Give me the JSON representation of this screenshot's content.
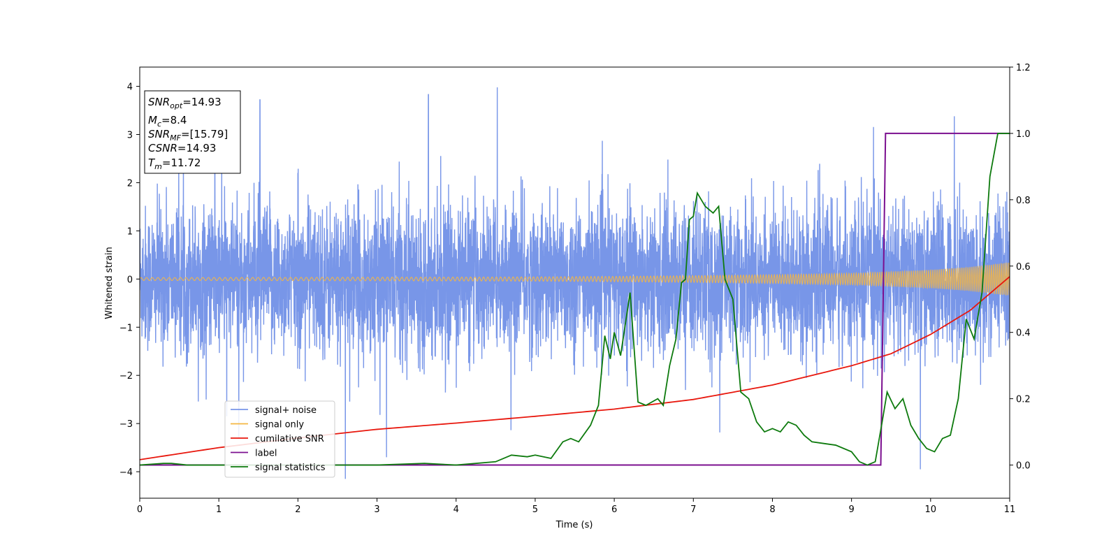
{
  "chart_data": {
    "type": "line",
    "xlabel": "Time (s)",
    "ylabel": "Whitened strain",
    "xlim": [
      0,
      11
    ],
    "ylim": [
      -4.55,
      4.4
    ],
    "y2lim": [
      -0.1,
      1.2
    ],
    "x_ticks": [
      0,
      1,
      2,
      3,
      4,
      5,
      6,
      7,
      8,
      9,
      10,
      11
    ],
    "y_ticks": [
      -4,
      -3,
      -2,
      -1,
      0,
      1,
      2,
      3,
      4
    ],
    "y2_ticks": [
      0.0,
      0.2,
      0.4,
      0.6,
      0.8,
      1.0,
      1.2
    ],
    "grid": false,
    "legend_position": "lower-left",
    "info_box": {
      "snr_opt": {
        "main": "SNR",
        "sub": "opt",
        "value": "=14.93"
      },
      "mc": {
        "main": "M",
        "sub": "c",
        "value": "=8.4"
      },
      "snr_mf": {
        "main": "SNR",
        "sub": "MF",
        "value": "=[15.79]"
      },
      "csnr": {
        "main": "CSNR",
        "value": "=14.93"
      },
      "tm": {
        "main": "T",
        "sub": "m",
        "value": "=11.72"
      }
    },
    "series": [
      {
        "name": "signal+ noise",
        "color": "#7896e8",
        "axis": "left",
        "note_peaks": [
          [
            0.95,
            3.6
          ],
          [
            1.52,
            3.72
          ],
          [
            3.65,
            3.83
          ],
          [
            4.52,
            3.98
          ],
          [
            10.3,
            3.38
          ],
          [
            2.6,
            -4.15
          ],
          [
            1.1,
            -2.85
          ],
          [
            3.12,
            -3.7
          ],
          [
            9.87,
            -3.95
          ]
        ],
        "envelope_sigma": 0.75
      },
      {
        "name": "signal only",
        "color": "#f5b642",
        "axis": "left",
        "x": [
          0,
          2,
          4,
          5,
          6,
          7,
          8,
          9,
          10,
          10.5,
          11
        ],
        "amplitude": [
          0.03,
          0.035,
          0.04,
          0.045,
          0.055,
          0.07,
          0.09,
          0.12,
          0.19,
          0.25,
          0.35
        ]
      },
      {
        "name": "cumilative SNR",
        "color": "#e8170d",
        "axis": "left",
        "x": [
          0,
          1,
          2,
          3,
          4,
          5,
          6,
          7,
          8,
          9,
          9.5,
          10,
          10.5,
          11
        ],
        "y": [
          -3.75,
          -3.5,
          -3.3,
          -3.12,
          -2.99,
          -2.85,
          -2.7,
          -2.5,
          -2.2,
          -1.8,
          -1.55,
          -1.15,
          -0.65,
          0.05
        ]
      },
      {
        "name": "label",
        "color": "#7b0f8f",
        "axis": "right",
        "x": [
          0,
          9.37,
          9.43,
          11
        ],
        "y": [
          0.0,
          0.0,
          1.0,
          1.0
        ]
      },
      {
        "name": "signal statistics",
        "color": "#0d7a0d",
        "axis": "right",
        "x": [
          0,
          0.3,
          0.4,
          0.6,
          1,
          2,
          3,
          3.6,
          4,
          4.5,
          4.7,
          4.9,
          5.0,
          5.2,
          5.35,
          5.45,
          5.55,
          5.7,
          5.8,
          5.88,
          5.95,
          6.0,
          6.08,
          6.2,
          6.3,
          6.4,
          6.55,
          6.62,
          6.7,
          6.78,
          6.85,
          6.9,
          6.95,
          7.0,
          7.05,
          7.15,
          7.25,
          7.32,
          7.4,
          7.5,
          7.6,
          7.7,
          7.8,
          7.9,
          8.0,
          8.1,
          8.2,
          8.3,
          8.4,
          8.5,
          8.65,
          8.8,
          9.0,
          9.1,
          9.2,
          9.3,
          9.38,
          9.45,
          9.55,
          9.65,
          9.75,
          9.85,
          9.95,
          10.05,
          10.15,
          10.25,
          10.35,
          10.45,
          10.55,
          10.65,
          10.75,
          10.85,
          10.95,
          11.0
        ],
        "y": [
          0.0,
          0.005,
          0.005,
          0.0,
          0.0,
          0.0,
          0.0,
          0.005,
          0.0,
          0.01,
          0.03,
          0.025,
          0.03,
          0.02,
          0.07,
          0.08,
          0.07,
          0.12,
          0.18,
          0.39,
          0.32,
          0.4,
          0.33,
          0.52,
          0.19,
          0.18,
          0.2,
          0.18,
          0.3,
          0.38,
          0.55,
          0.56,
          0.74,
          0.75,
          0.82,
          0.78,
          0.76,
          0.78,
          0.56,
          0.5,
          0.22,
          0.2,
          0.13,
          0.1,
          0.11,
          0.1,
          0.13,
          0.12,
          0.09,
          0.07,
          0.065,
          0.06,
          0.04,
          0.01,
          0.0,
          0.01,
          0.12,
          0.22,
          0.17,
          0.2,
          0.12,
          0.08,
          0.05,
          0.04,
          0.08,
          0.09,
          0.2,
          0.44,
          0.38,
          0.52,
          0.87,
          1.0,
          1.0,
          1.0
        ]
      }
    ]
  }
}
